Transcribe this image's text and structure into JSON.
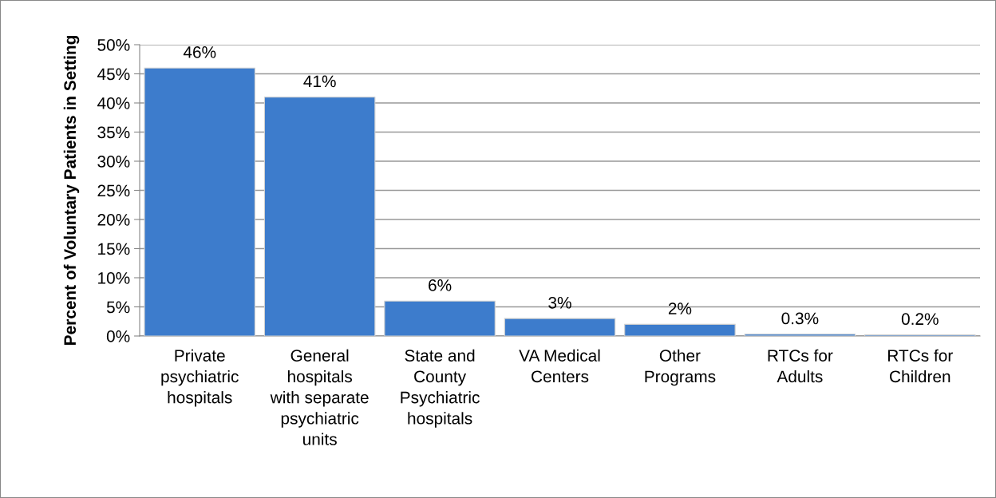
{
  "chart_data": {
    "type": "bar",
    "ylabel": "Percent of Voluntary Patients in Setting",
    "categories": [
      "Private\npsychiatric\nhospitals",
      "General\nhospitals\nwith separate\npsychiatric\nunits",
      "State and\nCounty\nPsychiatric\nhospitals",
      "VA Medical\nCenters",
      "Other\nPrograms",
      "RTCs for\nAdults",
      "RTCs for\nChildren"
    ],
    "values": [
      46,
      41,
      6,
      3,
      2,
      0.3,
      0.2
    ],
    "value_labels": [
      "46%",
      "41%",
      "6%",
      "3%",
      "2%",
      "0.3%",
      "0.2%"
    ],
    "color": "#3d7ccc",
    "ylim": [
      0,
      50
    ],
    "yticks": [
      {
        "value": 0,
        "label": "0%"
      },
      {
        "value": 5,
        "label": "5%"
      },
      {
        "value": 10,
        "label": "10%"
      },
      {
        "value": 15,
        "label": "15%"
      },
      {
        "value": 20,
        "label": "20%"
      },
      {
        "value": 25,
        "label": "25%"
      },
      {
        "value": 30,
        "label": "30%"
      },
      {
        "value": 35,
        "label": "35%"
      },
      {
        "value": 40,
        "label": "40%"
      },
      {
        "value": 45,
        "label": "45%"
      },
      {
        "value": 50,
        "label": "50%"
      }
    ],
    "grid": "y",
    "legend": false
  }
}
